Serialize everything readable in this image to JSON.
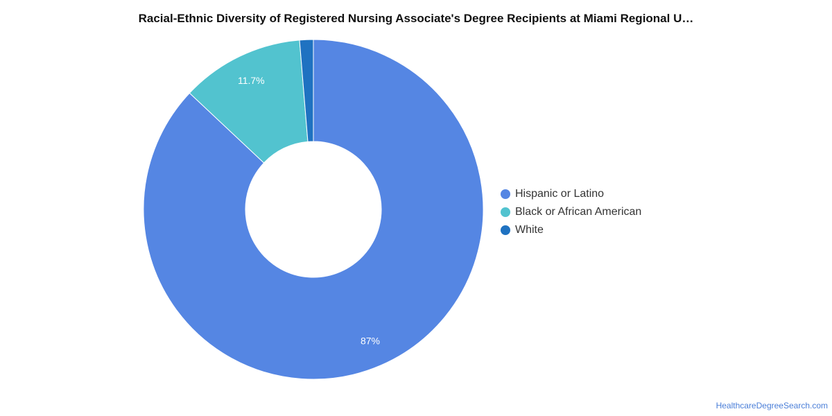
{
  "chart_data": {
    "type": "pie",
    "title": "Racial-Ethnic Diversity of Registered Nursing Associate's Degree Recipients at Miami Regional U…",
    "categories": [
      "Hispanic or Latino",
      "Black or African American",
      "White"
    ],
    "values": [
      87,
      11.7,
      1.3
    ],
    "value_labels": [
      "87%",
      "11.7%",
      ""
    ],
    "colors": [
      "#5586e3",
      "#52c3cf",
      "#1f72c1"
    ],
    "donut": true,
    "legend_position": "right"
  },
  "footer": {
    "source": "HealthcareDegreeSearch.com"
  }
}
